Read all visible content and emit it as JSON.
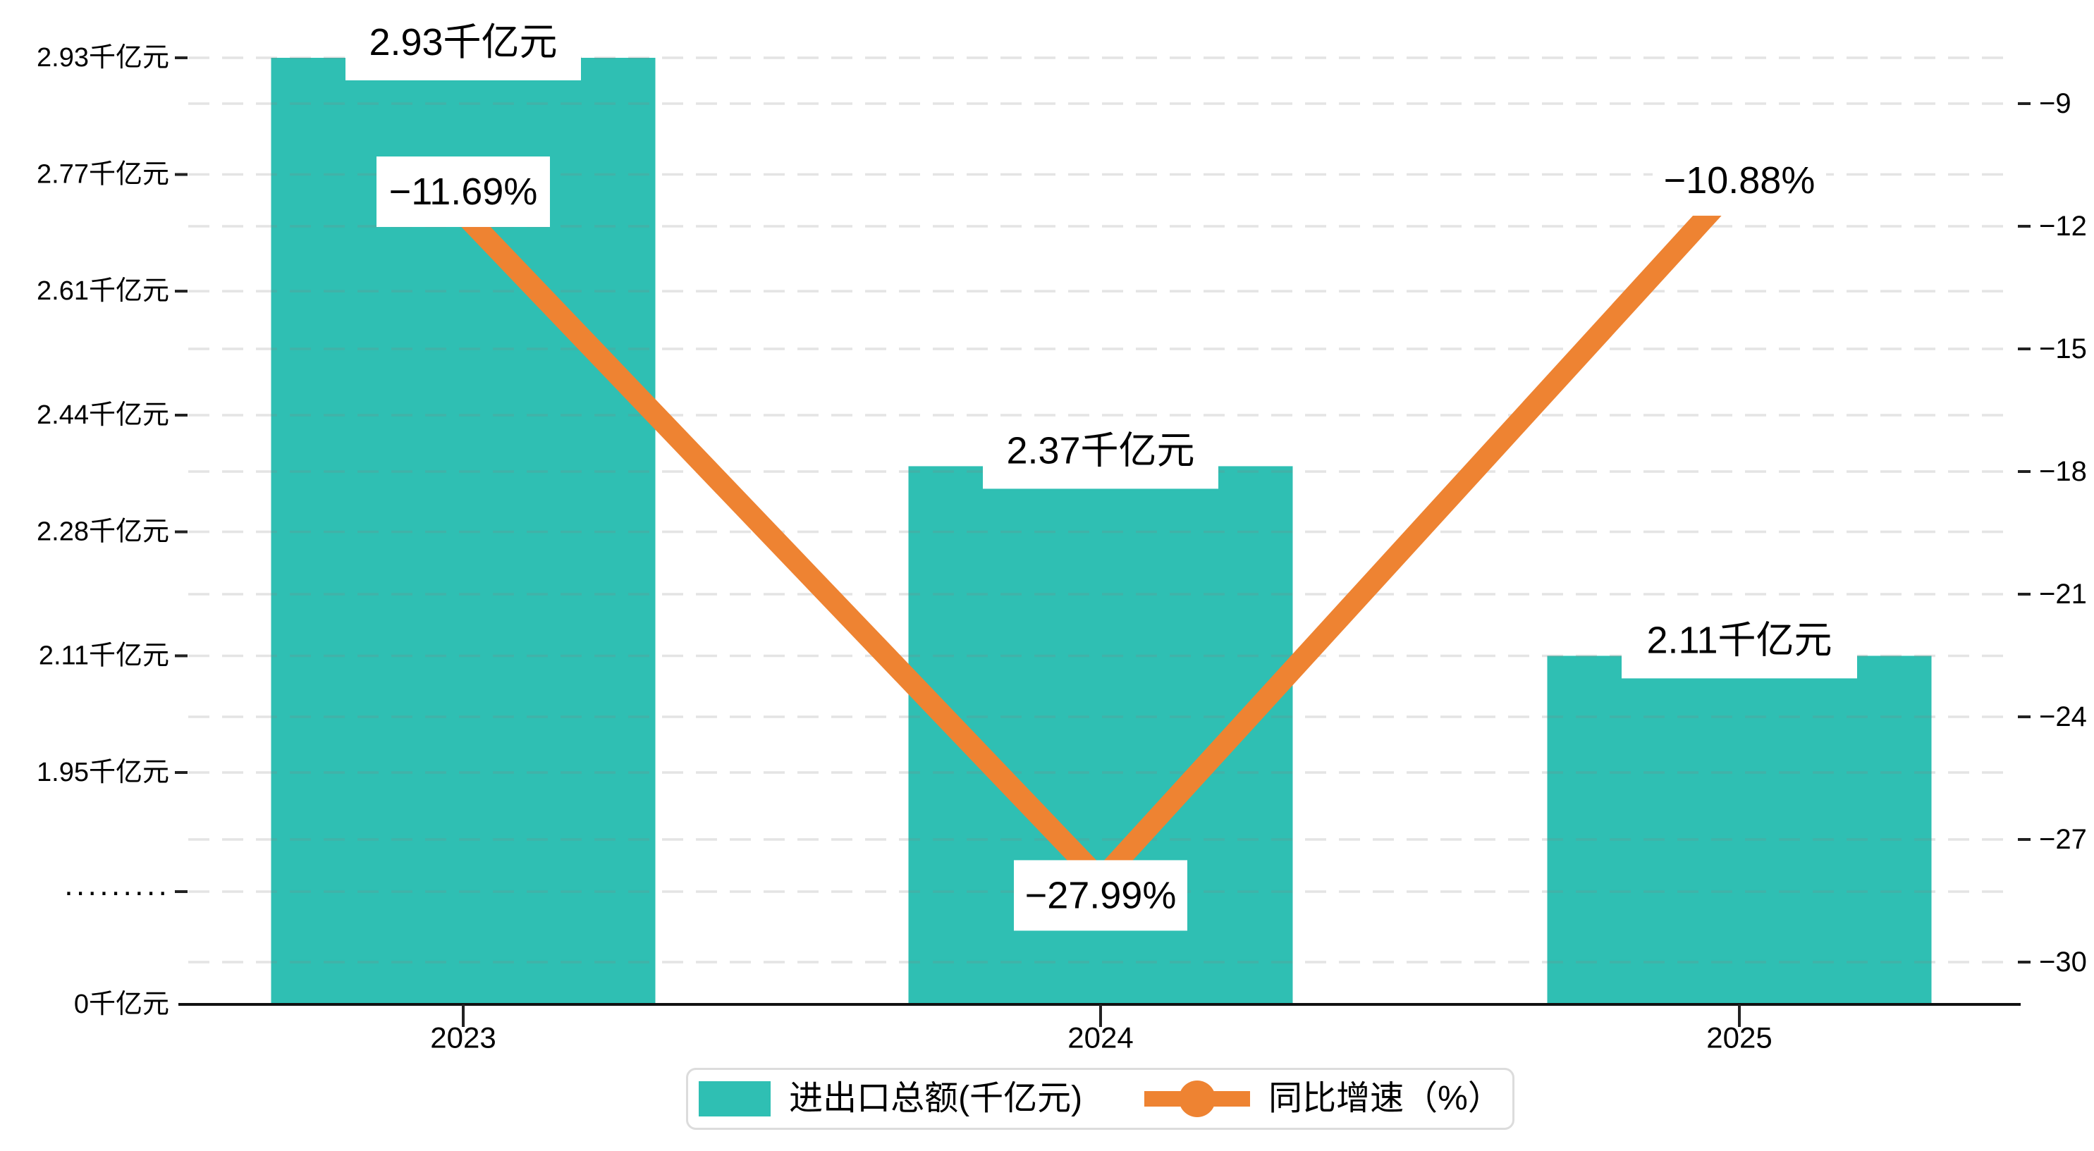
{
  "chart_data": {
    "type": "bar+line combo, dual y-axes",
    "categories": [
      "2023",
      "2024",
      "2025"
    ],
    "series": [
      {
        "name": "进出口总额(千亿元)",
        "type": "bar",
        "axis": "left",
        "color": "#2FBFB3",
        "values": [
          2.93,
          2.37,
          2.11
        ],
        "data_labels": [
          "2.93千亿元",
          "2.37千亿元",
          "2.11千亿元"
        ]
      },
      {
        "name": "同比增速（%）",
        "type": "line",
        "axis": "right",
        "color": "#EE8332",
        "values": [
          -11.69,
          -27.99,
          -10.88
        ],
        "data_labels": [
          "−11.69%",
          "−27.99%",
          "−10.88%"
        ]
      }
    ],
    "left_axis": {
      "unit": "千亿元",
      "tick_labels": [
        "2.93千亿元",
        "2.77千亿元",
        "2.61千亿元",
        "2.44千亿元",
        "2.28千亿元",
        "2.11千亿元",
        "1.95千亿元"
      ],
      "tick_values": [
        2.93,
        2.77,
        2.61,
        2.44,
        2.28,
        2.11,
        1.95
      ],
      "break_label": "·········",
      "zero_label": "0千亿元",
      "has_axis_break": true
    },
    "right_axis": {
      "tick_labels": [
        "−9",
        "−12",
        "−15",
        "−18",
        "−21",
        "−24",
        "−27",
        "−30"
      ],
      "tick_values": [
        -9,
        -12,
        -15,
        -18,
        -21,
        -24,
        -27,
        -30
      ],
      "range": [
        -30,
        -9
      ]
    },
    "legend": {
      "bar_label": "进出口总额(千亿元)",
      "line_label": "同比增速（%）"
    },
    "grid": "horizontal dashed gridlines at every left and right axis tick",
    "colors": {
      "bar": "#2FBFB3",
      "line": "#EE8332",
      "axis_line": "#111111",
      "gridline": "rgba(130,130,130,0.22)",
      "label_box": "#ffffff",
      "legend_border": "#dcdcdc"
    }
  }
}
